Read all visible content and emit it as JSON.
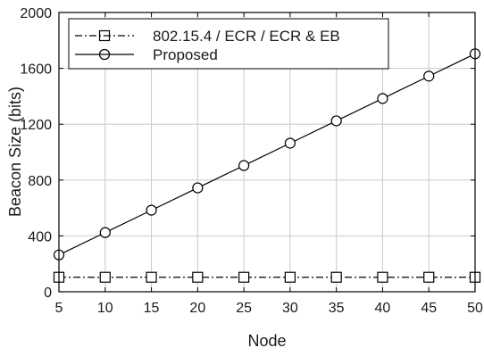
{
  "chart_data": {
    "type": "line",
    "xlabel": "Node",
    "ylabel": "Beacon Size (bits)",
    "x": [
      5,
      10,
      15,
      20,
      25,
      30,
      35,
      40,
      45,
      50
    ],
    "xticks": [
      "5",
      "10",
      "15",
      "20",
      "25",
      "30",
      "35",
      "40",
      "45",
      "50"
    ],
    "yticks": [
      "0",
      "400",
      "800",
      "1200",
      "1600",
      "2000"
    ],
    "xlim": [
      5,
      50
    ],
    "ylim": [
      0,
      2000
    ],
    "grid": true,
    "legend_position": "top-left",
    "series": [
      {
        "name": "802.15.4 / ECR / ECR & EB",
        "values": [
          104,
          104,
          104,
          104,
          104,
          104,
          104,
          104,
          104,
          104
        ],
        "marker": "square",
        "line_style": "dash-dot",
        "color": "#000000"
      },
      {
        "name": "Proposed",
        "values": [
          264,
          424,
          584,
          744,
          904,
          1064,
          1224,
          1384,
          1544,
          1704
        ],
        "marker": "circle",
        "line_style": "solid",
        "color": "#000000"
      }
    ]
  }
}
